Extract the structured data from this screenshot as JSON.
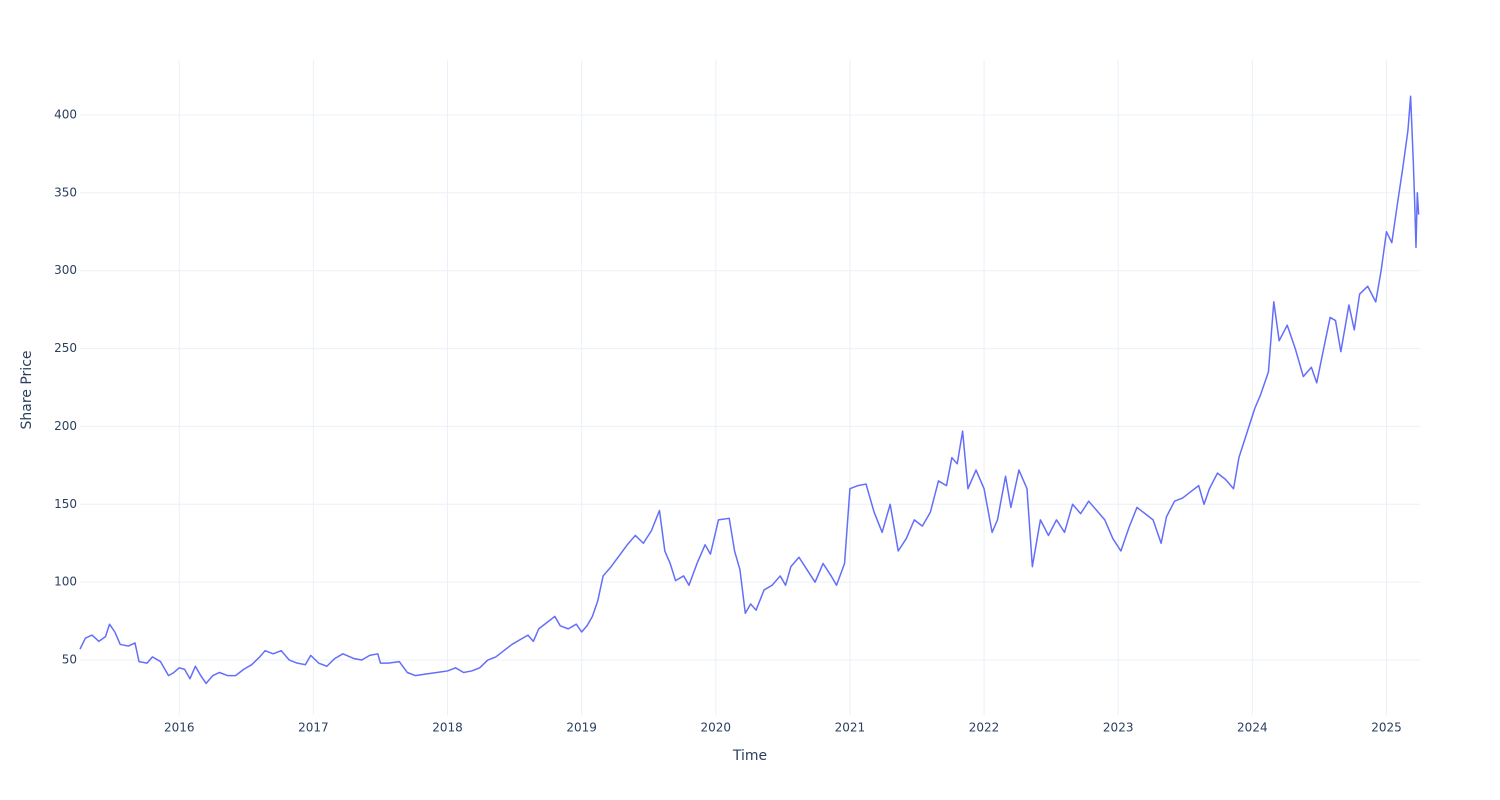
{
  "chart_data": {
    "type": "line",
    "xlabel": "Time",
    "ylabel": "Share Price",
    "color": "#636efa",
    "grid": true,
    "xlim": [
      2015.26,
      2025.25
    ],
    "xticks": [
      2016,
      2017,
      2018,
      2019,
      2020,
      2021,
      2022,
      2023,
      2024,
      2025
    ],
    "ylim": [
      14.7,
      435.3
    ],
    "yticks": [
      50,
      100,
      150,
      200,
      250,
      300,
      350,
      400
    ],
    "x": [
      2015.26,
      2015.3,
      2015.35,
      2015.4,
      2015.45,
      2015.48,
      2015.52,
      2015.56,
      2015.62,
      2015.67,
      2015.7,
      2015.76,
      2015.8,
      2015.86,
      2015.92,
      2015.96,
      2016.0,
      2016.04,
      2016.08,
      2016.12,
      2016.16,
      2016.2,
      2016.25,
      2016.3,
      2016.36,
      2016.42,
      2016.48,
      2016.54,
      2016.6,
      2016.64,
      2016.7,
      2016.76,
      2016.82,
      2016.88,
      2016.94,
      2016.98,
      2017.04,
      2017.1,
      2017.16,
      2017.22,
      2017.3,
      2017.36,
      2017.42,
      2017.48,
      2017.5,
      2017.56,
      2017.64,
      2017.7,
      2017.76,
      2017.84,
      2017.92,
      2018.0,
      2018.06,
      2018.12,
      2018.18,
      2018.24,
      2018.3,
      2018.36,
      2018.42,
      2018.48,
      2018.54,
      2018.6,
      2018.64,
      2018.68,
      2018.74,
      2018.8,
      2018.84,
      2018.9,
      2018.96,
      2019.0,
      2019.04,
      2019.08,
      2019.12,
      2019.16,
      2019.22,
      2019.28,
      2019.34,
      2019.4,
      2019.46,
      2019.52,
      2019.58,
      2019.62,
      2019.66,
      2019.7,
      2019.76,
      2019.8,
      2019.86,
      2019.92,
      2019.96,
      2020.02,
      2020.1,
      2020.14,
      2020.18,
      2020.22,
      2020.26,
      2020.3,
      2020.36,
      2020.42,
      2020.48,
      2020.52,
      2020.56,
      2020.62,
      2020.68,
      2020.74,
      2020.8,
      2020.86,
      2020.9,
      2020.96,
      2021.0,
      2021.06,
      2021.12,
      2021.18,
      2021.24,
      2021.3,
      2021.36,
      2021.42,
      2021.48,
      2021.54,
      2021.6,
      2021.66,
      2021.72,
      2021.76,
      2021.8,
      2021.84,
      2021.88,
      2021.94,
      2022.0,
      2022.06,
      2022.1,
      2022.16,
      2022.2,
      2022.26,
      2022.32,
      2022.36,
      2022.42,
      2022.48,
      2022.54,
      2022.6,
      2022.66,
      2022.72,
      2022.78,
      2022.84,
      2022.9,
      2022.96,
      2023.02,
      2023.08,
      2023.14,
      2023.2,
      2023.26,
      2023.32,
      2023.36,
      2023.42,
      2023.48,
      2023.54,
      2023.6,
      2023.64,
      2023.68,
      2023.74,
      2023.8,
      2023.86,
      2023.9,
      2023.96,
      2024.02,
      2024.06,
      2024.12,
      2024.16,
      2024.2,
      2024.26,
      2024.32,
      2024.38,
      2024.44,
      2024.48,
      2024.52,
      2024.58,
      2024.62,
      2024.66,
      2024.72,
      2024.76,
      2024.8,
      2024.86,
      2024.92,
      2024.96,
      2025.0,
      2025.04,
      2025.08,
      2025.12,
      2025.16,
      2025.18,
      2025.2,
      2025.21,
      2025.22,
      2025.23,
      2025.24
    ],
    "values": [
      57,
      64,
      66,
      62,
      65,
      73,
      68,
      60,
      59,
      61,
      49,
      48,
      52,
      49,
      40,
      42,
      45,
      44,
      38,
      46,
      40,
      35,
      40,
      42,
      40,
      40,
      44,
      47,
      52,
      56,
      54,
      56,
      50,
      48,
      47,
      53,
      48,
      46,
      51,
      54,
      51,
      50,
      53,
      54,
      48,
      48,
      49,
      42,
      40,
      41,
      42,
      43,
      45,
      42,
      43,
      45,
      50,
      52,
      56,
      60,
      63,
      66,
      62,
      70,
      74,
      78,
      72,
      70,
      73,
      68,
      72,
      78,
      88,
      104,
      110,
      117,
      124,
      130,
      125,
      133,
      146,
      120,
      112,
      101,
      104,
      98,
      112,
      124,
      118,
      140,
      141,
      120,
      108,
      80,
      86,
      82,
      95,
      98,
      104,
      98,
      110,
      116,
      108,
      100,
      112,
      104,
      98,
      112,
      160,
      162,
      163,
      145,
      132,
      150,
      120,
      128,
      140,
      136,
      145,
      165,
      162,
      180,
      176,
      197,
      160,
      172,
      160,
      132,
      140,
      168,
      148,
      172,
      160,
      110,
      140,
      130,
      140,
      132,
      150,
      144,
      152,
      146,
      140,
      128,
      120,
      135,
      148,
      144,
      140,
      125,
      142,
      152,
      154,
      158,
      162,
      150,
      160,
      170,
      166,
      160,
      180,
      196,
      212,
      220,
      235,
      280,
      255,
      265,
      250,
      232,
      238,
      228,
      245,
      270,
      268,
      248,
      278,
      262,
      285,
      290,
      280,
      300,
      325,
      318,
      342,
      365,
      390,
      412,
      370,
      345,
      315,
      350,
      336
    ]
  }
}
